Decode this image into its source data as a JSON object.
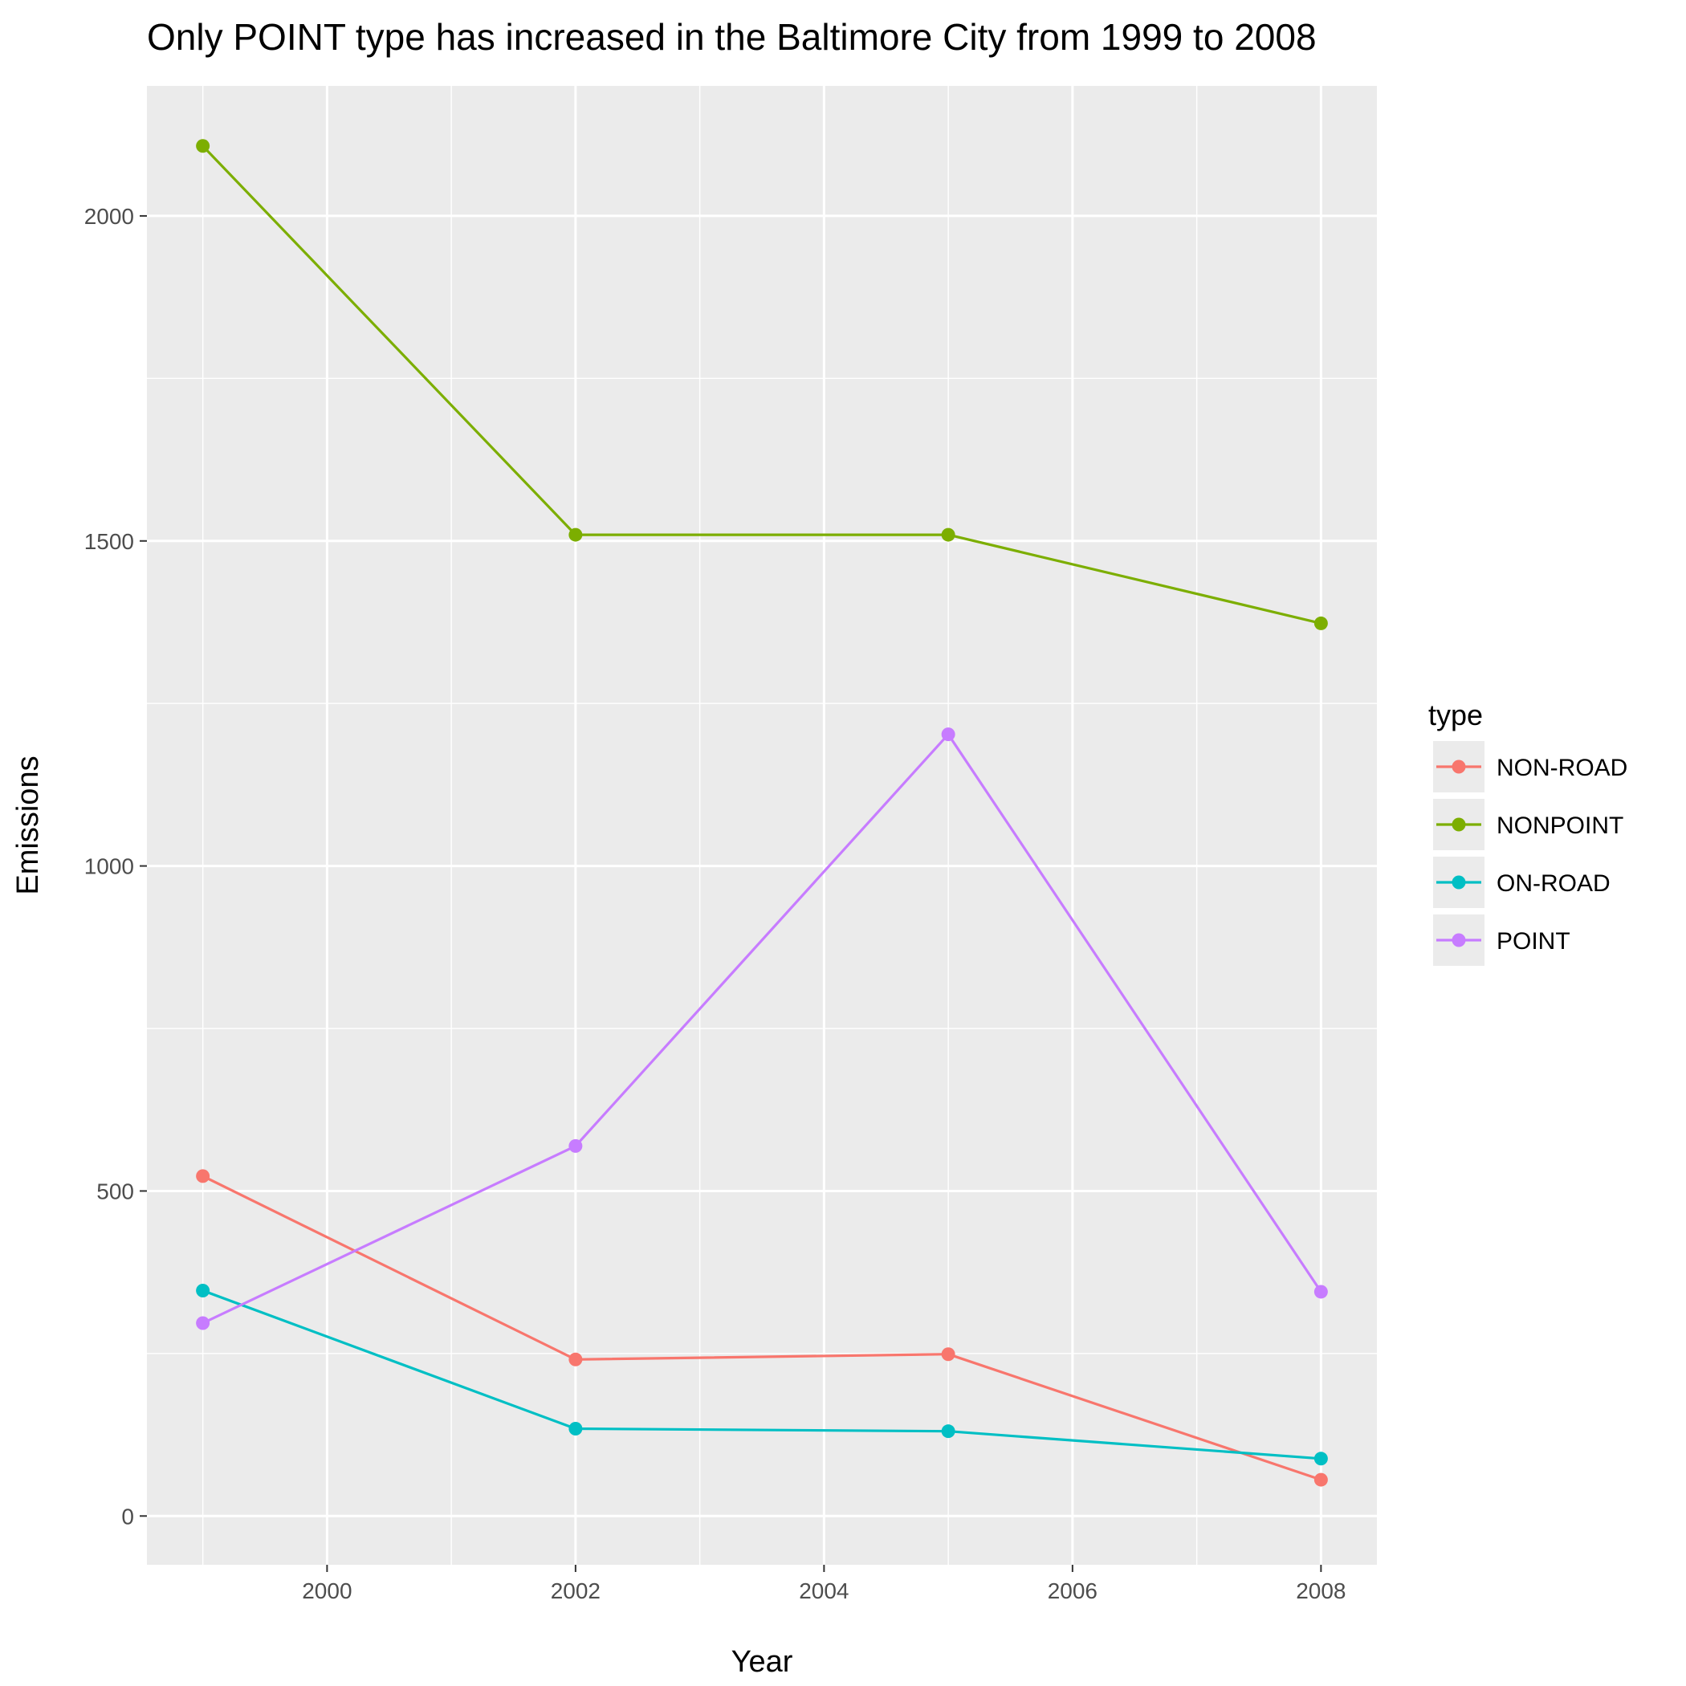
{
  "chart_data": {
    "type": "line",
    "title": "Only POINT type has increased in the Baltimore City from 1999 to 2008",
    "xlabel": "Year",
    "ylabel": "Emissions",
    "x": [
      1999,
      2002,
      2005,
      2008
    ],
    "xlim": [
      1998.55,
      2008.45
    ],
    "ylim": [
      -75,
      2200
    ],
    "x_ticks": [
      2000,
      2002,
      2004,
      2006,
      2008
    ],
    "x_tick_labels": [
      "2000",
      "2002",
      "2004",
      "2006",
      "2008"
    ],
    "y_ticks": [
      0,
      500,
      1000,
      1500,
      2000
    ],
    "y_tick_labels": [
      "0",
      "500",
      "1000",
      "1500",
      "2000"
    ],
    "grid": true,
    "legend_title": "type",
    "legend_position": "right",
    "series": [
      {
        "name": "NON-ROAD",
        "color": "#F8766D",
        "values": [
          522.94,
          240.85,
          248.93,
          55.82
        ]
      },
      {
        "name": "NONPOINT",
        "color": "#7CAE00",
        "values": [
          2107.63,
          1509.5,
          1509.5,
          1373.21
        ]
      },
      {
        "name": "ON-ROAD",
        "color": "#00BFC4",
        "values": [
          346.82,
          134.31,
          130.43,
          88.28
        ]
      },
      {
        "name": "POINT",
        "color": "#C77CFF",
        "values": [
          296.8,
          569.26,
          1202.49,
          344.98
        ]
      }
    ]
  }
}
